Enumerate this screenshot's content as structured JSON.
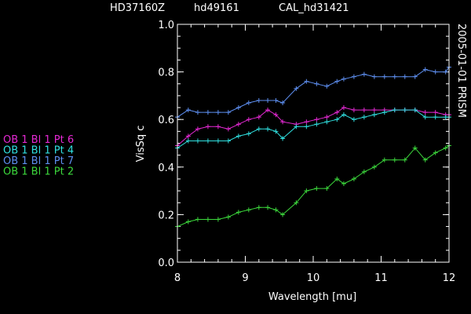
{
  "header": {
    "labels": [
      "HD37160Z",
      "hd49161",
      "CAL_hd31421"
    ]
  },
  "side_note": "2005-01-01 PRISM",
  "chart_data": {
    "type": "line",
    "xlabel": "Wavelength [mu]",
    "ylabel": "VisSq c",
    "xlim": [
      8,
      12
    ],
    "ylim": [
      0,
      1
    ],
    "xticks": [
      8,
      9,
      10,
      11,
      12
    ],
    "yticks": [
      0.0,
      0.2,
      0.4,
      0.6,
      0.8,
      1.0
    ],
    "xtick_labels": [
      "8",
      "9",
      "10",
      "11",
      "12"
    ],
    "ytick_labels": [
      "0.0",
      "0.2",
      "0.4",
      "0.6",
      "0.8",
      "1.0"
    ],
    "grid": false,
    "legend_position": "left",
    "series": [
      {
        "name": "OB 1 Bl 1 Pt 6",
        "color": "#e629d4",
        "x": [
          8.0,
          8.16,
          8.3,
          8.45,
          8.6,
          8.75,
          8.9,
          9.05,
          9.2,
          9.33,
          9.45,
          9.55,
          9.75,
          9.9,
          10.05,
          10.2,
          10.35,
          10.45,
          10.6,
          10.75,
          10.9,
          11.05,
          11.2,
          11.35,
          11.5,
          11.65,
          11.8,
          11.95,
          12.0
        ],
        "y": [
          0.49,
          0.53,
          0.56,
          0.57,
          0.57,
          0.56,
          0.58,
          0.6,
          0.61,
          0.64,
          0.62,
          0.59,
          0.58,
          0.59,
          0.6,
          0.61,
          0.63,
          0.65,
          0.64,
          0.64,
          0.64,
          0.64,
          0.64,
          0.64,
          0.64,
          0.63,
          0.63,
          0.62,
          0.62
        ]
      },
      {
        "name": "OB 1 Bl 1 Pt 4",
        "color": "#30e0e0",
        "x": [
          8.0,
          8.16,
          8.3,
          8.45,
          8.6,
          8.75,
          8.9,
          9.05,
          9.2,
          9.33,
          9.45,
          9.55,
          9.75,
          9.9,
          10.05,
          10.2,
          10.35,
          10.45,
          10.6,
          10.75,
          10.9,
          11.05,
          11.2,
          11.35,
          11.5,
          11.65,
          11.8,
          11.95,
          12.0
        ],
        "y": [
          0.48,
          0.51,
          0.51,
          0.51,
          0.51,
          0.51,
          0.53,
          0.54,
          0.56,
          0.56,
          0.55,
          0.52,
          0.57,
          0.57,
          0.58,
          0.59,
          0.6,
          0.62,
          0.6,
          0.61,
          0.62,
          0.63,
          0.64,
          0.64,
          0.64,
          0.61,
          0.61,
          0.61,
          0.61
        ]
      },
      {
        "name": "OB 1 Bl 1 Pt 7",
        "color": "#5e8ff0",
        "x": [
          8.0,
          8.16,
          8.3,
          8.45,
          8.6,
          8.75,
          8.9,
          9.05,
          9.2,
          9.33,
          9.45,
          9.55,
          9.75,
          9.9,
          10.05,
          10.2,
          10.35,
          10.45,
          10.6,
          10.75,
          10.9,
          11.05,
          11.2,
          11.35,
          11.5,
          11.65,
          11.8,
          11.95,
          12.0
        ],
        "y": [
          0.61,
          0.64,
          0.63,
          0.63,
          0.63,
          0.63,
          0.65,
          0.67,
          0.68,
          0.68,
          0.68,
          0.67,
          0.73,
          0.76,
          0.75,
          0.74,
          0.76,
          0.77,
          0.78,
          0.79,
          0.78,
          0.78,
          0.78,
          0.78,
          0.78,
          0.81,
          0.8,
          0.8,
          0.82
        ]
      },
      {
        "name": "OB 1 Bl 1 Pt 2",
        "color": "#3cd83c",
        "x": [
          8.0,
          8.16,
          8.3,
          8.45,
          8.6,
          8.75,
          8.9,
          9.05,
          9.2,
          9.33,
          9.45,
          9.55,
          9.75,
          9.9,
          10.05,
          10.2,
          10.35,
          10.45,
          10.6,
          10.75,
          10.9,
          11.05,
          11.2,
          11.35,
          11.5,
          11.65,
          11.8,
          11.95,
          12.0
        ],
        "y": [
          0.15,
          0.17,
          0.18,
          0.18,
          0.18,
          0.19,
          0.21,
          0.22,
          0.23,
          0.23,
          0.22,
          0.2,
          0.25,
          0.3,
          0.31,
          0.31,
          0.35,
          0.33,
          0.35,
          0.38,
          0.4,
          0.43,
          0.43,
          0.43,
          0.48,
          0.43,
          0.46,
          0.48,
          0.49
        ]
      }
    ]
  },
  "colors": {
    "background": "#000000",
    "axes": "#ffffff",
    "text": "#ffffff"
  }
}
